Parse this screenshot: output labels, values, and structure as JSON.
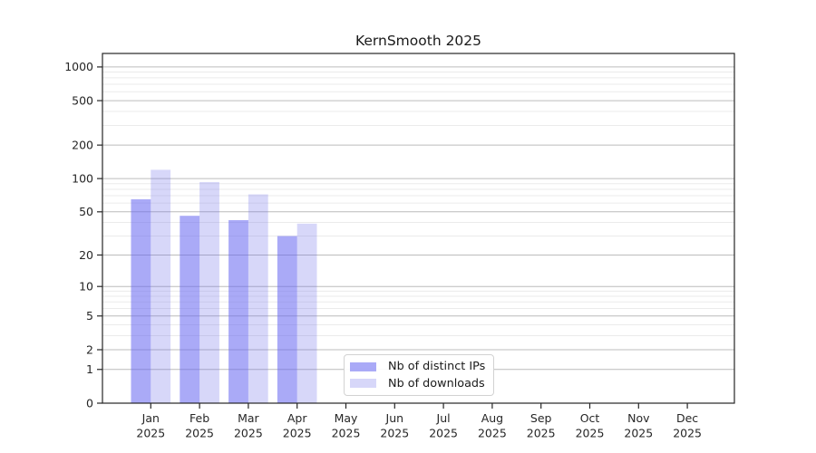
{
  "chart_data": {
    "type": "bar",
    "title": "KernSmooth 2025",
    "year_label": "2025",
    "categories": [
      "Jan",
      "Feb",
      "Mar",
      "Apr",
      "May",
      "Jun",
      "Jul",
      "Aug",
      "Sep",
      "Oct",
      "Nov",
      "Dec"
    ],
    "series": [
      {
        "name": "Nb of distinct IPs",
        "color": "rgba(100,100,240,0.55)",
        "values": [
          65,
          46,
          42,
          30,
          null,
          null,
          null,
          null,
          null,
          null,
          null,
          null
        ]
      },
      {
        "name": "Nb of downloads",
        "color": "rgba(112,112,235,0.28)",
        "values": [
          120,
          93,
          72,
          39,
          null,
          null,
          null,
          null,
          null,
          null,
          null,
          null
        ]
      }
    ],
    "xlabel": "",
    "ylabel": "",
    "y_ticks": [
      0,
      1,
      2,
      5,
      10,
      20,
      50,
      100,
      200,
      500,
      1000
    ],
    "y_minor_ticks": [
      3,
      4,
      6,
      7,
      8,
      9,
      30,
      40,
      60,
      70,
      80,
      90,
      300,
      400,
      600,
      700,
      800,
      900
    ],
    "scale": "log10(v+1)",
    "ylim": [
      0,
      1320
    ],
    "grid": true,
    "legend_position": "lower-center"
  },
  "colors": {
    "grid_major": "#bcbcbc",
    "grid_minor": "#ebebeb",
    "spine": "#262626",
    "tick": "#262626",
    "text": "#262626",
    "background": "#ffffff",
    "legend_border": "#d2d2d2"
  }
}
